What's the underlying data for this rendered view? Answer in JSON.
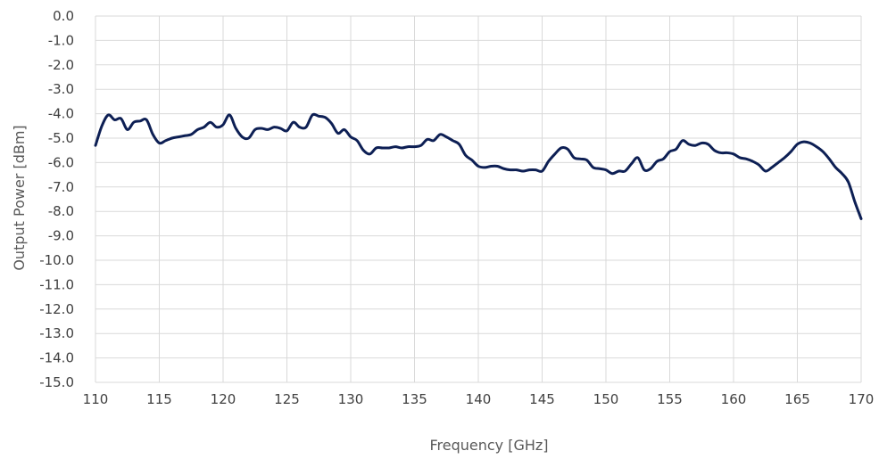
{
  "chart_data": {
    "type": "line",
    "title": "",
    "xlabel": "Frequency [GHz]",
    "ylabel": "Output Power [dBm]",
    "xlim": [
      110,
      170
    ],
    "ylim": [
      -15,
      0
    ],
    "x_ticks": [
      110,
      115,
      120,
      125,
      130,
      135,
      140,
      145,
      150,
      155,
      160,
      165,
      170
    ],
    "x_tick_labels": [
      "110",
      "115",
      "120",
      "125",
      "130",
      "135",
      "140",
      "145",
      "150",
      "155",
      "160",
      "165",
      "170"
    ],
    "y_ticks": [
      0,
      -1,
      -2,
      -3,
      -4,
      -5,
      -6,
      -7,
      -8,
      -9,
      -10,
      -11,
      -12,
      -13,
      -14,
      -15
    ],
    "y_tick_labels": [
      "0.0",
      "-1.0",
      "-2.0",
      "-3.0",
      "-4.0",
      "-5.0",
      "-6.0",
      "-7.0",
      "-8.0",
      "-9.0",
      "-10.0",
      "-11.0",
      "-12.0",
      "-13.0",
      "-14.0",
      "-15.0"
    ],
    "grid": true,
    "legend": "none",
    "series": [
      {
        "color": "#0d1f54",
        "x": [
          110,
          110.5,
          111,
          111.5,
          112,
          112.5,
          113,
          113.5,
          114,
          114.5,
          115,
          115.5,
          116,
          116.5,
          117,
          117.5,
          118,
          118.5,
          119,
          119.5,
          120,
          120.5,
          121,
          121.5,
          122,
          122.5,
          123,
          123.5,
          124,
          124.5,
          125,
          125.5,
          126,
          126.5,
          127,
          127.5,
          128,
          128.5,
          129,
          129.5,
          130,
          130.5,
          131,
          131.5,
          132,
          132.5,
          133,
          133.5,
          134,
          134.5,
          135,
          135.5,
          136,
          136.5,
          137,
          137.5,
          138,
          138.5,
          139,
          139.5,
          140,
          140.5,
          141,
          141.5,
          142,
          142.5,
          143,
          143.5,
          144,
          144.5,
          145,
          145.5,
          146,
          146.5,
          147,
          147.5,
          148,
          148.5,
          149,
          149.5,
          150,
          150.5,
          151,
          151.5,
          152,
          152.5,
          153,
          153.5,
          154,
          154.5,
          155,
          155.5,
          156,
          156.5,
          157,
          157.5,
          158,
          158.5,
          159,
          159.5,
          160,
          160.5,
          161,
          161.5,
          162,
          162.5,
          163,
          163.5,
          164,
          164.5,
          165,
          165.5,
          166,
          166.5,
          167,
          167.5,
          168,
          168.5,
          169,
          169.5,
          170
        ],
        "y": [
          -5.3,
          -4.5,
          -4.05,
          -4.25,
          -4.2,
          -4.65,
          -4.35,
          -4.3,
          -4.25,
          -4.85,
          -5.2,
          -5.1,
          -5.0,
          -4.95,
          -4.9,
          -4.85,
          -4.65,
          -4.55,
          -4.35,
          -4.55,
          -4.45,
          -4.05,
          -4.6,
          -4.95,
          -5.0,
          -4.65,
          -4.6,
          -4.65,
          -4.55,
          -4.6,
          -4.7,
          -4.35,
          -4.55,
          -4.55,
          -4.05,
          -4.1,
          -4.15,
          -4.4,
          -4.8,
          -4.65,
          -4.95,
          -5.1,
          -5.5,
          -5.65,
          -5.4,
          -5.4,
          -5.4,
          -5.35,
          -5.4,
          -5.35,
          -5.35,
          -5.3,
          -5.05,
          -5.1,
          -4.85,
          -4.95,
          -5.1,
          -5.25,
          -5.7,
          -5.9,
          -6.15,
          -6.2,
          -6.15,
          -6.15,
          -6.25,
          -6.3,
          -6.3,
          -6.35,
          -6.3,
          -6.3,
          -6.35,
          -5.95,
          -5.65,
          -5.4,
          -5.45,
          -5.8,
          -5.85,
          -5.9,
          -6.2,
          -6.25,
          -6.3,
          -6.45,
          -6.35,
          -6.35,
          -6.05,
          -5.8,
          -6.3,
          -6.25,
          -5.95,
          -5.85,
          -5.55,
          -5.45,
          -5.1,
          -5.25,
          -5.3,
          -5.2,
          -5.25,
          -5.5,
          -5.6,
          -5.6,
          -5.65,
          -5.8,
          -5.85,
          -5.95,
          -6.1,
          -6.35,
          -6.2,
          -6.0,
          -5.8,
          -5.55,
          -5.25,
          -5.15,
          -5.2,
          -5.35,
          -5.55,
          -5.85,
          -6.2,
          -6.45,
          -6.8,
          -7.6,
          -8.3
        ]
      }
    ]
  }
}
